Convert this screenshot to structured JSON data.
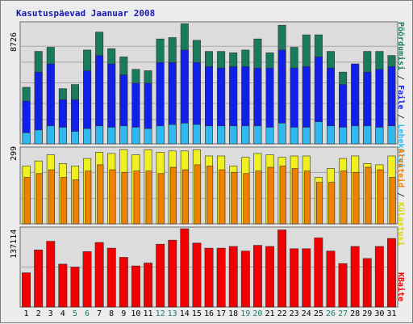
{
  "title": "Kasutuspäevad Jaanuar 2008",
  "panels": {
    "top_max_label": "8726",
    "mid_max_label": "299",
    "bottom_max_label": "137114"
  },
  "legend": {
    "top": [
      {
        "label": "Pöördumisi",
        "color": "#1a7a5e"
      },
      {
        "label": "Faile",
        "color": "#1020e8"
      },
      {
        "label": "Lehekülgi",
        "color": "#30b8f0"
      }
    ],
    "mid": [
      {
        "label": "Arvuteid",
        "color": "#f08000"
      },
      {
        "label": "Külastusi",
        "color": "#f0f020"
      }
    ],
    "bottom": [
      {
        "label": "KBaite",
        "color": "#f00000"
      }
    ]
  },
  "chart_data": {
    "type": "bar",
    "categories": [
      "1",
      "2",
      "3",
      "4",
      "5",
      "6",
      "7",
      "8",
      "9",
      "10",
      "11",
      "12",
      "13",
      "14",
      "15",
      "16",
      "17",
      "18",
      "19",
      "20",
      "21",
      "22",
      "23",
      "24",
      "25",
      "26",
      "27",
      "28",
      "29",
      "30",
      "31"
    ],
    "weekend_days": [
      "5",
      "6",
      "12",
      "13",
      "19",
      "20",
      "26",
      "27"
    ],
    "panels": [
      {
        "ylim": [
          0,
          8726
        ],
        "series": [
          {
            "name": "Pöördumisi",
            "values": [
              4100,
              6700,
              7000,
              4000,
              4300,
              6800,
              8100,
              6900,
              6300,
              5400,
              5300,
              7600,
              7700,
              8700,
              7500,
              6700,
              6700,
              6600,
              6800,
              7600,
              6600,
              8600,
              7000,
              7900,
              7900,
              6700,
              5200,
              5700,
              6700,
              6700,
              6400
            ]
          },
          {
            "name": "Faile",
            "values": [
              3100,
              5200,
              5800,
              3200,
              3200,
              5300,
              6400,
              5800,
              5000,
              4400,
              4400,
              5900,
              5900,
              6800,
              5900,
              5600,
              5500,
              5600,
              5600,
              5500,
              5500,
              6800,
              5500,
              5600,
              6300,
              5500,
              4300,
              5800,
              5200,
              5400,
              5600
            ]
          },
          {
            "name": "Lehekülgi",
            "values": [
              800,
              1000,
              1300,
              1200,
              900,
              1100,
              1300,
              1200,
              1300,
              1200,
              1100,
              1300,
              1400,
              1500,
              1400,
              1300,
              1300,
              1300,
              1300,
              1300,
              1200,
              1500,
              1200,
              1200,
              1600,
              1300,
              1200,
              1300,
              1300,
              1200,
              1300
            ]
          }
        ]
      },
      {
        "ylim": [
          0,
          299
        ],
        "series": [
          {
            "name": "Külastusi",
            "values": [
              230,
              250,
              275,
              240,
              230,
              260,
              285,
              280,
              295,
              275,
              295,
              285,
              290,
              290,
              295,
              270,
              270,
              230,
              265,
              280,
              275,
              265,
              270,
              270,
              185,
              220,
              260,
              270,
              240,
              235,
              270
            ]
          },
          {
            "name": "Arvuteid",
            "values": [
              185,
              200,
              215,
              185,
              175,
              210,
              235,
              215,
              205,
              210,
              210,
              200,
              225,
              215,
              235,
              230,
              215,
              205,
              200,
              210,
              225,
              230,
              220,
              210,
              165,
              165,
              210,
              205,
              225,
              215,
              185
            ]
          }
        ]
      },
      {
        "ylim": [
          0,
          137114
        ],
        "series": [
          {
            "name": "KBaite",
            "values": [
              60000,
              100000,
              115000,
              75000,
              70000,
              97000,
              113000,
              103000,
              87000,
              72000,
              77000,
              110000,
              117000,
              137000,
              112000,
              103000,
              103000,
              106000,
              98000,
              108000,
              106000,
              135000,
              102000,
              102000,
              121000,
              98000,
              76000,
              106000,
              85000,
              106000,
              120000
            ]
          }
        ]
      }
    ]
  }
}
